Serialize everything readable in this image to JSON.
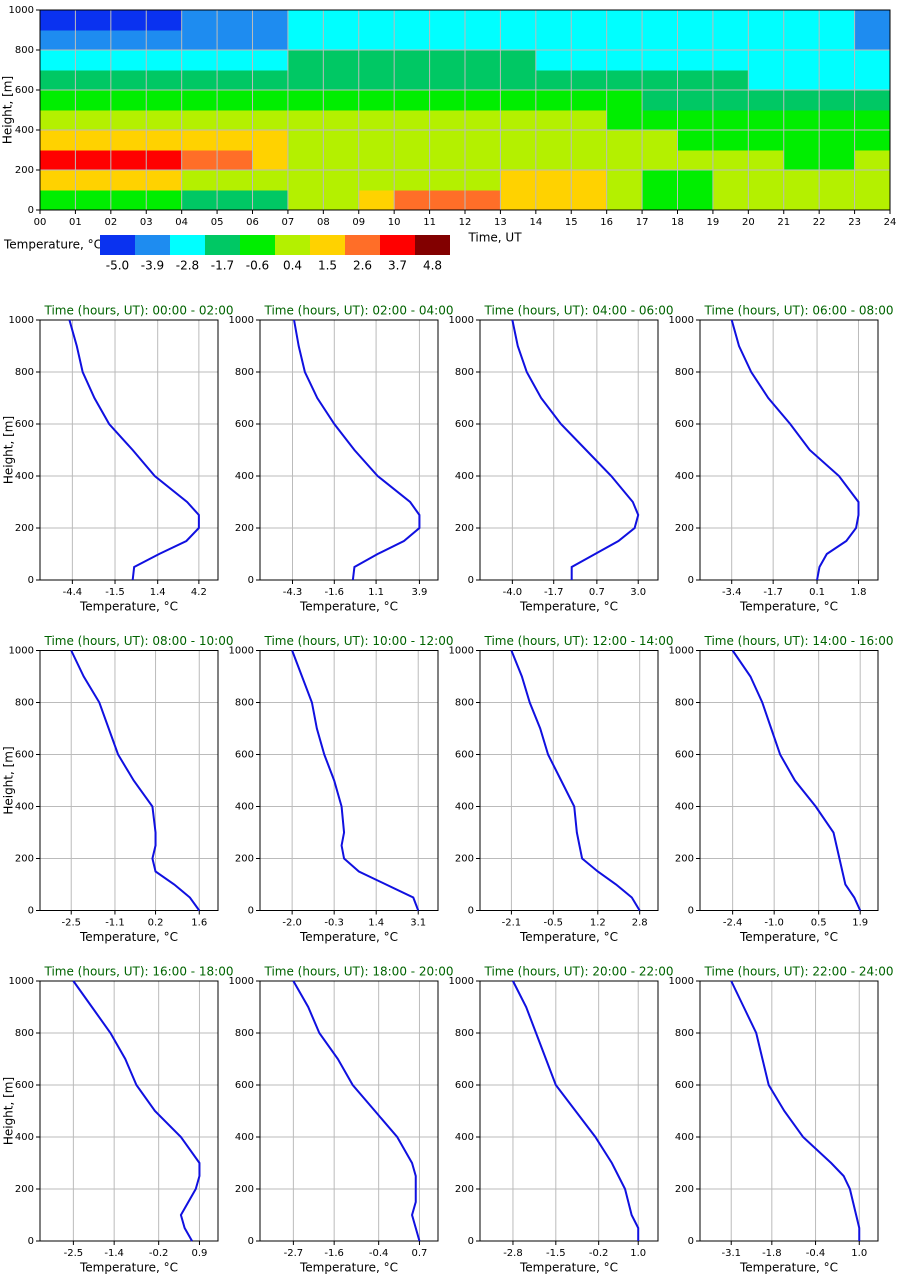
{
  "chart_data": [
    {
      "type": "heatmap",
      "xlabel": "Time, UT",
      "ylabel": "Height, [m]",
      "xlim": [
        0,
        24
      ],
      "ylim": [
        0,
        1000
      ],
      "xticks": [
        {
          "value": 0,
          "label": "00"
        },
        {
          "value": 1,
          "label": "01"
        },
        {
          "value": 2,
          "label": "02"
        },
        {
          "value": 3,
          "label": "03"
        },
        {
          "value": 4,
          "label": "04"
        },
        {
          "value": 5,
          "label": "05"
        },
        {
          "value": 6,
          "label": "06"
        },
        {
          "value": 7,
          "label": "07"
        },
        {
          "value": 8,
          "label": "08"
        },
        {
          "value": 9,
          "label": "09"
        },
        10,
        11,
        12,
        13,
        14,
        15,
        16,
        17,
        18,
        19,
        20,
        21,
        22,
        23,
        24
      ],
      "yticks": [
        0,
        200,
        400,
        600,
        800,
        1000
      ],
      "grid": true,
      "x": [
        0.5,
        1.5,
        2.5,
        3.5,
        4.5,
        5.5,
        6.5,
        7.5,
        8.5,
        9.5,
        10.5,
        11.5,
        12.5,
        13.5,
        14.5,
        15.5,
        16.5,
        17.5,
        18.5,
        19.5,
        20.5,
        21.5,
        22.5,
        23.5
      ],
      "y": [
        50,
        150,
        250,
        350,
        450,
        550,
        650,
        750,
        850,
        950
      ],
      "z": [
        [
          -0.6,
          -0.6,
          -0.6,
          -0.6,
          -1.7,
          -1.7,
          -1.7,
          0.4,
          0.4,
          1.5,
          2.6,
          2.6,
          2.6,
          1.5,
          1.5,
          1.5,
          0.4,
          -0.6,
          -0.6,
          0.4,
          0.4,
          0.4,
          0.4,
          0.4
        ],
        [
          1.5,
          1.5,
          1.5,
          1.5,
          0.4,
          0.4,
          0.4,
          0.4,
          0.4,
          0.4,
          0.4,
          0.4,
          0.4,
          1.5,
          1.5,
          1.5,
          0.4,
          -0.6,
          -0.6,
          0.4,
          0.4,
          0.4,
          0.4,
          0.4
        ],
        [
          3.7,
          3.7,
          3.7,
          3.7,
          2.6,
          2.6,
          1.5,
          0.4,
          0.4,
          0.4,
          0.4,
          0.4,
          0.4,
          0.4,
          0.4,
          0.4,
          0.4,
          0.4,
          0.4,
          0.4,
          0.4,
          -0.6,
          -0.6,
          0.4
        ],
        [
          1.5,
          1.5,
          1.5,
          1.5,
          1.5,
          1.5,
          1.5,
          0.4,
          0.4,
          0.4,
          0.4,
          0.4,
          0.4,
          0.4,
          0.4,
          0.4,
          0.4,
          0.4,
          -0.6,
          -0.6,
          -0.6,
          -0.6,
          -0.6,
          -0.6
        ],
        [
          0.4,
          0.4,
          0.4,
          0.4,
          0.4,
          0.4,
          0.4,
          0.4,
          0.4,
          0.4,
          0.4,
          0.4,
          0.4,
          0.4,
          0.4,
          0.4,
          -0.6,
          -0.6,
          -0.6,
          -0.6,
          -0.6,
          -0.6,
          -0.6,
          -0.6
        ],
        [
          -0.6,
          -0.6,
          -0.6,
          -0.6,
          -0.6,
          -0.6,
          -0.6,
          -0.6,
          -0.6,
          -0.6,
          -0.6,
          -0.6,
          -0.6,
          -0.6,
          -0.6,
          -0.6,
          -0.6,
          -1.7,
          -1.7,
          -1.7,
          -1.7,
          -1.7,
          -1.7,
          -1.7
        ],
        [
          -1.7,
          -1.7,
          -1.7,
          -1.7,
          -1.7,
          -1.7,
          -1.7,
          -1.7,
          -1.7,
          -1.7,
          -1.7,
          -1.7,
          -1.7,
          -1.7,
          -1.7,
          -1.7,
          -1.7,
          -1.7,
          -1.7,
          -1.7,
          -2.8,
          -2.8,
          -2.8,
          -2.8
        ],
        [
          -2.8,
          -2.8,
          -2.8,
          -2.8,
          -2.8,
          -2.8,
          -2.8,
          -1.7,
          -1.7,
          -1.7,
          -1.7,
          -1.7,
          -1.7,
          -1.7,
          -2.8,
          -2.8,
          -2.8,
          -2.8,
          -2.8,
          -2.8,
          -2.8,
          -2.8,
          -2.8,
          -2.8
        ],
        [
          -3.9,
          -3.9,
          -3.9,
          -3.9,
          -3.9,
          -3.9,
          -3.9,
          -2.8,
          -2.8,
          -2.8,
          -2.8,
          -2.8,
          -2.8,
          -2.8,
          -2.8,
          -2.8,
          -2.8,
          -2.8,
          -2.8,
          -2.8,
          -2.8,
          -2.8,
          -2.8,
          -3.9
        ],
        [
          -5.0,
          -5.0,
          -5.0,
          -5.0,
          -3.9,
          -3.9,
          -3.9,
          -2.8,
          -2.8,
          -2.8,
          -2.8,
          -2.8,
          -2.8,
          -2.8,
          -2.8,
          -2.8,
          -2.8,
          -2.8,
          -2.8,
          -2.8,
          -2.8,
          -2.8,
          -2.8,
          -3.9
        ]
      ],
      "colorbar": {
        "label": "Temperature, °C",
        "colors": [
          "#0a32f0",
          "#1e8cf0",
          "#00ffff",
          "#00c864",
          "#00ee00",
          "#b4f000",
          "#ffd200",
          "#ff6e28",
          "#ff0000",
          "#820000"
        ],
        "ticks": [
          {
            "value": -5,
            "label": "-5.0"
          },
          -3.9,
          -2.8,
          -1.7,
          -0.6,
          0.4,
          1.5,
          2.6,
          3.7,
          4.8
        ]
      }
    },
    {
      "type": "line",
      "title": "Time (hours, UT): 00:00 - 02:00",
      "xlabel": "Temperature, °C",
      "ylabel": "Height, [m]",
      "xlim": [
        -6.6,
        5.5
      ],
      "xticks": [
        -4.4,
        -1.5,
        1.4,
        4.2
      ],
      "ylim": [
        0,
        1000
      ],
      "yticks": [
        0,
        200,
        400,
        600,
        800,
        1000
      ],
      "grid": true,
      "y": [
        0,
        50,
        100,
        150,
        200,
        250,
        300,
        400,
        500,
        600,
        700,
        800,
        900,
        1000
      ],
      "series": [
        {
          "color": "#1010e0",
          "values": [
            -0.3,
            -0.2,
            1.5,
            3.35,
            4.2,
            4.2,
            3.4,
            1.2,
            -0.3,
            -1.9,
            -2.9,
            -3.7,
            -4.1,
            -4.6
          ]
        }
      ]
    },
    {
      "type": "line",
      "title": "Time (hours, UT): 02:00 - 04:00",
      "xlabel": "Temperature, °C",
      "xlim": [
        -6.4,
        5.1
      ],
      "xticks": [
        -4.3,
        -1.6,
        1.1,
        3.9
      ],
      "ylim": [
        0,
        1000
      ],
      "yticks": [
        0,
        200,
        400,
        600,
        800,
        1000
      ],
      "grid": true,
      "y": [
        0,
        50,
        100,
        150,
        200,
        250,
        300,
        400,
        500,
        600,
        700,
        800,
        900,
        1000
      ],
      "series": [
        {
          "color": "#1010e0",
          "values": [
            -0.4,
            -0.3,
            1.2,
            2.9,
            3.9,
            3.9,
            3.3,
            1.2,
            -0.3,
            -1.6,
            -2.7,
            -3.5,
            -3.9,
            -4.2
          ]
        }
      ]
    },
    {
      "type": "line",
      "title": "Time (hours, UT): 04:00 - 06:00",
      "xlabel": "Temperature, °C",
      "xlim": [
        -5.8,
        4.1
      ],
      "xticks": [
        {
          "value": -4,
          "label": "-4.0"
        },
        -1.7,
        0.7,
        {
          "value": 3,
          "label": "3.0"
        }
      ],
      "ylim": [
        0,
        1000
      ],
      "yticks": [
        0,
        200,
        400,
        600,
        800,
        1000
      ],
      "grid": true,
      "y": [
        0,
        50,
        100,
        150,
        200,
        250,
        300,
        400,
        500,
        600,
        700,
        800,
        900,
        1000
      ],
      "series": [
        {
          "color": "#1010e0",
          "values": [
            -0.7,
            -0.7,
            0.6,
            1.9,
            2.8,
            3.0,
            2.7,
            1.5,
            0.1,
            -1.3,
            -2.4,
            -3.2,
            -3.7,
            -4.0
          ]
        }
      ]
    },
    {
      "type": "line",
      "title": "Time (hours, UT): 06:00 - 08:00",
      "xlabel": "Temperature, °C",
      "xlim": [
        -4.7,
        2.6
      ],
      "xticks": [
        -3.4,
        -1.7,
        0.1,
        1.8
      ],
      "ylim": [
        0,
        1000
      ],
      "yticks": [
        0,
        200,
        400,
        600,
        800,
        1000
      ],
      "grid": true,
      "y": [
        0,
        50,
        100,
        150,
        200,
        250,
        300,
        400,
        500,
        600,
        700,
        800,
        900,
        1000
      ],
      "series": [
        {
          "color": "#1010e0",
          "values": [
            0.1,
            0.2,
            0.5,
            1.3,
            1.7,
            1.8,
            1.8,
            1.0,
            -0.2,
            -1.0,
            -1.9,
            -2.6,
            -3.1,
            -3.4
          ]
        }
      ]
    },
    {
      "type": "line",
      "title": "Time (hours, UT): 08:00 - 10:00",
      "xlabel": "Temperature, °C",
      "ylabel": "Height, [m]",
      "xlim": [
        -3.5,
        2.2
      ],
      "xticks": [
        -2.5,
        -1.1,
        0.2,
        1.6
      ],
      "ylim": [
        0,
        1000
      ],
      "yticks": [
        0,
        200,
        400,
        600,
        800,
        1000
      ],
      "grid": true,
      "y": [
        0,
        50,
        100,
        150,
        200,
        250,
        300,
        400,
        500,
        600,
        700,
        800,
        900,
        1000
      ],
      "series": [
        {
          "color": "#1010e0",
          "values": [
            1.6,
            1.3,
            0.8,
            0.2,
            0.1,
            0.2,
            0.2,
            0.1,
            -0.5,
            -1.0,
            -1.3,
            -1.6,
            -2.1,
            -2.5
          ]
        }
      ]
    },
    {
      "type": "line",
      "title": "Time (hours, UT): 10:00 - 12:00",
      "xlabel": "Temperature, °C",
      "xlim": [
        -3.3,
        3.9
      ],
      "xticks": [
        {
          "value": -2,
          "label": "-2.0"
        },
        -0.3,
        1.4,
        3.1
      ],
      "ylim": [
        0,
        1000
      ],
      "yticks": [
        0,
        200,
        400,
        600,
        800,
        1000
      ],
      "grid": true,
      "y": [
        0,
        50,
        100,
        150,
        200,
        250,
        300,
        400,
        500,
        600,
        700,
        800,
        900,
        1000
      ],
      "series": [
        {
          "color": "#1010e0",
          "values": [
            3.1,
            2.9,
            1.8,
            0.7,
            0.1,
            0.0,
            0.1,
            0.0,
            -0.3,
            -0.7,
            -1.0,
            -1.2,
            -1.6,
            -2.0
          ]
        }
      ]
    },
    {
      "type": "line",
      "title": "Time (hours, UT): 12:00 - 14:00",
      "xlabel": "Temperature, °C",
      "xlim": [
        -3.3,
        3.5
      ],
      "xticks": [
        -2.1,
        -0.5,
        1.2,
        2.8
      ],
      "ylim": [
        0,
        1000
      ],
      "yticks": [
        0,
        200,
        400,
        600,
        800,
        1000
      ],
      "grid": true,
      "y": [
        0,
        50,
        100,
        150,
        200,
        250,
        300,
        400,
        500,
        600,
        700,
        800,
        900,
        1000
      ],
      "series": [
        {
          "color": "#1010e0",
          "values": [
            2.8,
            2.5,
            1.9,
            1.2,
            0.6,
            0.5,
            0.4,
            0.3,
            -0.2,
            -0.7,
            -1.0,
            -1.4,
            -1.7,
            -2.1
          ]
        }
      ]
    },
    {
      "type": "line",
      "title": "Time (hours, UT): 14:00 - 16:00",
      "xlabel": "Temperature, °C",
      "xlim": [
        -3.5,
        2.5
      ],
      "xticks": [
        -2.4,
        {
          "value": -1,
          "label": "-1.0"
        },
        0.5,
        1.9
      ],
      "ylim": [
        0,
        1000
      ],
      "yticks": [
        0,
        200,
        400,
        600,
        800,
        1000
      ],
      "grid": true,
      "y": [
        0,
        50,
        100,
        150,
        200,
        250,
        300,
        400,
        500,
        600,
        700,
        800,
        900,
        1000
      ],
      "series": [
        {
          "color": "#1010e0",
          "values": [
            1.9,
            1.7,
            1.4,
            1.3,
            1.2,
            1.1,
            1.0,
            0.4,
            -0.3,
            -0.8,
            -1.1,
            -1.4,
            -1.8,
            -2.4
          ]
        }
      ]
    },
    {
      "type": "line",
      "title": "Time (hours, UT): 16:00 - 18:00",
      "xlabel": "Temperature, °C",
      "ylabel": "Height, [m]",
      "xlim": [
        -3.4,
        1.4
      ],
      "xticks": [
        -2.5,
        -1.4,
        -0.2,
        0.9
      ],
      "ylim": [
        0,
        1000
      ],
      "yticks": [
        0,
        200,
        400,
        600,
        800,
        1000
      ],
      "grid": true,
      "y": [
        0,
        50,
        100,
        150,
        200,
        250,
        300,
        400,
        500,
        600,
        700,
        800,
        900,
        1000
      ],
      "series": [
        {
          "color": "#1010e0",
          "values": [
            0.7,
            0.5,
            0.4,
            0.6,
            0.8,
            0.9,
            0.9,
            0.4,
            -0.3,
            -0.8,
            -1.1,
            -1.5,
            -2.0,
            -2.5
          ]
        }
      ]
    },
    {
      "type": "line",
      "title": "Time (hours, UT): 18:00 - 20:00",
      "xlabel": "Temperature, °C",
      "xlim": [
        -3.6,
        1.2
      ],
      "xticks": [
        -2.7,
        -1.6,
        -0.4,
        0.7
      ],
      "ylim": [
        0,
        1000
      ],
      "yticks": [
        0,
        200,
        400,
        600,
        800,
        1000
      ],
      "grid": true,
      "y": [
        0,
        50,
        100,
        150,
        200,
        250,
        300,
        400,
        500,
        600,
        700,
        800,
        900,
        1000
      ],
      "series": [
        {
          "color": "#1010e0",
          "values": [
            0.7,
            0.6,
            0.5,
            0.6,
            0.6,
            0.6,
            0.5,
            0.1,
            -0.5,
            -1.1,
            -1.5,
            -2.0,
            -2.3,
            -2.7
          ]
        }
      ]
    },
    {
      "type": "line",
      "title": "Time (hours, UT): 20:00 - 22:00",
      "xlabel": "Temperature, °C",
      "xlim": [
        -3.8,
        1.6
      ],
      "xticks": [
        -2.8,
        -1.5,
        -0.2,
        {
          "value": 1,
          "label": "1.0"
        }
      ],
      "ylim": [
        0,
        1000
      ],
      "yticks": [
        0,
        200,
        400,
        600,
        800,
        1000
      ],
      "grid": true,
      "y": [
        0,
        50,
        100,
        150,
        200,
        250,
        300,
        400,
        500,
        600,
        700,
        800,
        900,
        1000
      ],
      "series": [
        {
          "color": "#1010e0",
          "values": [
            1.0,
            1.0,
            0.8,
            0.7,
            0.6,
            0.4,
            0.2,
            -0.3,
            -0.9,
            -1.5,
            -1.8,
            -2.1,
            -2.4,
            -2.8
          ]
        }
      ]
    },
    {
      "type": "line",
      "title": "Time (hours, UT): 22:00 - 24:00",
      "xlabel": "Temperature, °C",
      "xlim": [
        -4.1,
        1.6
      ],
      "xticks": [
        -3.1,
        -1.8,
        -0.4,
        {
          "value": 1,
          "label": "1.0"
        }
      ],
      "ylim": [
        0,
        1000
      ],
      "yticks": [
        0,
        200,
        400,
        600,
        800,
        1000
      ],
      "grid": true,
      "y": [
        0,
        50,
        100,
        150,
        200,
        250,
        300,
        400,
        500,
        600,
        700,
        800,
        900,
        1000
      ],
      "series": [
        {
          "color": "#1010e0",
          "values": [
            1.0,
            1.0,
            0.9,
            0.8,
            0.7,
            0.5,
            0.1,
            -0.8,
            -1.4,
            -1.9,
            -2.1,
            -2.3,
            -2.7,
            -3.1
          ]
        }
      ]
    }
  ]
}
